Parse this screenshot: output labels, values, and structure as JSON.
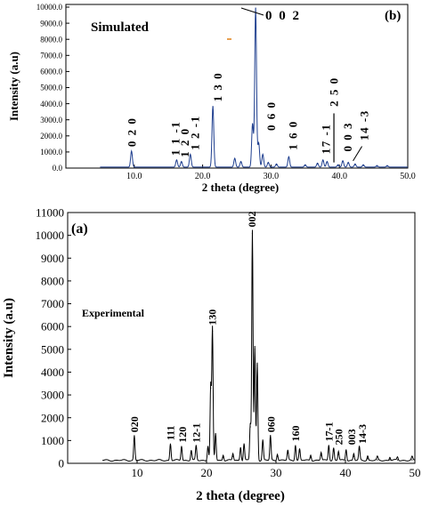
{
  "chart_data": [
    {
      "type": "line",
      "panel_label": "(b)",
      "annotation": "Simulated",
      "xlabel": "2 theta (degree)",
      "ylabel": "Intensity (a.u)",
      "xlim": [
        0,
        50
      ],
      "ylim": [
        0,
        10000
      ],
      "x_ticks": [
        "10.0",
        "20.0",
        "30.0",
        "40.0",
        "50.0"
      ],
      "x_tick_values": [
        10,
        20,
        30,
        40,
        50
      ],
      "y_ticks": [
        "0.0",
        "1000.0",
        "2000.0",
        "3000.0",
        "4000.0",
        "5000.0",
        "6000.0",
        "7000.0",
        "8000.0",
        "9000.0",
        "10000.0"
      ],
      "y_tick_values": [
        0,
        1000,
        2000,
        3000,
        4000,
        5000,
        6000,
        7000,
        8000,
        9000,
        10000
      ],
      "grid": false,
      "series": [
        {
          "peaks": [
            {
              "x": 9.6,
              "y": 1000
            },
            {
              "x": 16.2,
              "y": 450
            },
            {
              "x": 16.9,
              "y": 350
            },
            {
              "x": 18.2,
              "y": 800
            },
            {
              "x": 21.5,
              "y": 3800
            },
            {
              "x": 24.7,
              "y": 550
            },
            {
              "x": 25.6,
              "y": 350
            },
            {
              "x": 27.3,
              "y": 2700
            },
            {
              "x": 27.75,
              "y": 9900
            },
            {
              "x": 28.2,
              "y": 1500
            },
            {
              "x": 28.8,
              "y": 800
            },
            {
              "x": 29.6,
              "y": 300
            },
            {
              "x": 30.8,
              "y": 200
            },
            {
              "x": 32.6,
              "y": 650
            },
            {
              "x": 35.0,
              "y": 150
            },
            {
              "x": 36.8,
              "y": 250
            },
            {
              "x": 37.6,
              "y": 450
            },
            {
              "x": 38.2,
              "y": 350
            },
            {
              "x": 39.8,
              "y": 150
            },
            {
              "x": 40.5,
              "y": 400
            },
            {
              "x": 41.3,
              "y": 300
            },
            {
              "x": 42.3,
              "y": 200
            },
            {
              "x": 43.5,
              "y": 150
            },
            {
              "x": 45.5,
              "y": 100
            },
            {
              "x": 47.0,
              "y": 100
            }
          ]
        }
      ],
      "peak_labels": [
        {
          "text": "0 2 0",
          "x": 9.6,
          "at_y": 1100
        },
        {
          "text": "1 1 -1",
          "x": 16.0,
          "at_y": 550
        },
        {
          "text": "1 2 0",
          "x": 17.4,
          "at_y": 450
        },
        {
          "text": "1 2 -1",
          "x": 18.9,
          "at_y": 900
        },
        {
          "text": "1 3 0",
          "x": 22.2,
          "at_y": 3900
        },
        {
          "text": "0 6 0",
          "x": 30.0,
          "at_y": 2100
        },
        {
          "text": "1 6 0",
          "x": 33.2,
          "at_y": 900
        },
        {
          "text": "17 -1",
          "x": 38.0,
          "at_y": 650
        },
        {
          "text": "2 5 0",
          "x": 39.2,
          "at_y": 3600
        },
        {
          "text": "0 0 3",
          "x": 41.2,
          "at_y": 800
        },
        {
          "text": "14 -3",
          "x": 43.6,
          "at_y": 1500
        }
      ],
      "callout_label": "0 0 2"
    },
    {
      "type": "line",
      "panel_label": "(a)",
      "annotation": "Experimental",
      "xlabel": "2 theta (degree)",
      "ylabel": "Intensity (a.u)",
      "xlim": [
        0,
        50
      ],
      "ylim": [
        0,
        11000
      ],
      "x_ticks": [
        "10",
        "20",
        "30",
        "40",
        "50"
      ],
      "x_tick_values": [
        10,
        20,
        30,
        40,
        50
      ],
      "y_ticks": [
        "0",
        "1000",
        "2000",
        "3000",
        "4000",
        "5000",
        "6000",
        "7000",
        "8000",
        "9000",
        "10000",
        "11000"
      ],
      "y_tick_values": [
        0,
        1000,
        2000,
        3000,
        4000,
        5000,
        6000,
        7000,
        8000,
        9000,
        10000,
        11000
      ],
      "grid": false,
      "series": [
        {
          "peaks": [
            {
              "x": 9.6,
              "y": 1100
            },
            {
              "x": 14.8,
              "y": 750
            },
            {
              "x": 16.4,
              "y": 650
            },
            {
              "x": 17.8,
              "y": 450
            },
            {
              "x": 18.5,
              "y": 650
            },
            {
              "x": 20.2,
              "y": 650
            },
            {
              "x": 20.6,
              "y": 3300
            },
            {
              "x": 20.85,
              "y": 5800
            },
            {
              "x": 21.3,
              "y": 1200
            },
            {
              "x": 22.4,
              "y": 250
            },
            {
              "x": 23.8,
              "y": 300
            },
            {
              "x": 24.9,
              "y": 600
            },
            {
              "x": 25.4,
              "y": 750
            },
            {
              "x": 26.3,
              "y": 1600
            },
            {
              "x": 26.6,
              "y": 10100
            },
            {
              "x": 26.95,
              "y": 5000
            },
            {
              "x": 27.3,
              "y": 4300
            },
            {
              "x": 28.1,
              "y": 900
            },
            {
              "x": 29.2,
              "y": 1100
            },
            {
              "x": 30.2,
              "y": 300
            },
            {
              "x": 31.7,
              "y": 450
            },
            {
              "x": 32.8,
              "y": 700
            },
            {
              "x": 33.4,
              "y": 500
            },
            {
              "x": 35.0,
              "y": 250
            },
            {
              "x": 36.5,
              "y": 350
            },
            {
              "x": 37.6,
              "y": 700
            },
            {
              "x": 38.3,
              "y": 550
            },
            {
              "x": 39.0,
              "y": 400
            },
            {
              "x": 40.1,
              "y": 500
            },
            {
              "x": 41.2,
              "y": 300
            },
            {
              "x": 42.0,
              "y": 600
            },
            {
              "x": 43.2,
              "y": 200
            },
            {
              "x": 44.6,
              "y": 150
            },
            {
              "x": 46.4,
              "y": 150
            },
            {
              "x": 47.5,
              "y": 150
            },
            {
              "x": 49.6,
              "y": 150
            }
          ]
        }
      ],
      "peak_labels": [
        {
          "text": "020",
          "x": 9.6,
          "at_y": 1200
        },
        {
          "text": "111",
          "x": 14.8,
          "at_y": 850
        },
        {
          "text": "120",
          "x": 16.5,
          "at_y": 750
        },
        {
          "text": "12-1",
          "x": 18.5,
          "at_y": 750
        },
        {
          "text": "130",
          "x": 20.8,
          "at_y": 5900
        },
        {
          "text": "002",
          "x": 26.5,
          "at_y": 10200
        },
        {
          "text": "060",
          "x": 29.3,
          "at_y": 1200
        },
        {
          "text": "160",
          "x": 32.8,
          "at_y": 800
        },
        {
          "text": "17-1",
          "x": 37.6,
          "at_y": 800
        },
        {
          "text": "250",
          "x": 39.0,
          "at_y": 650
        },
        {
          "text": "003",
          "x": 40.9,
          "at_y": 650
        },
        {
          "text": "14-3",
          "x": 42.4,
          "at_y": 700
        }
      ]
    }
  ]
}
